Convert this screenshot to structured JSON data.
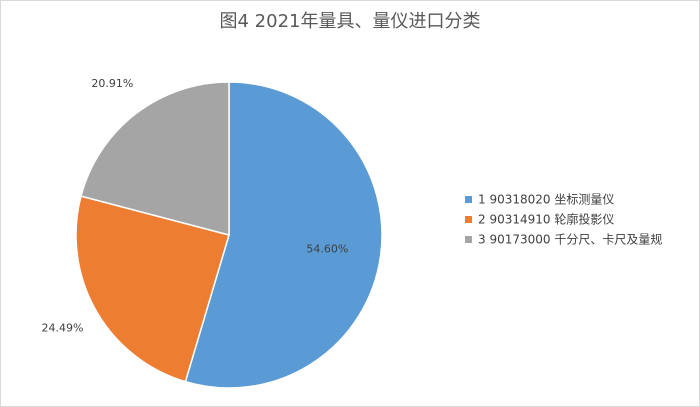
{
  "chart_data": {
    "type": "pie",
    "title": "图4 2021年量具、量仪进口分类",
    "series": [
      {
        "name": "1 90318020 坐标测量仪",
        "color": "#5b9bd5",
        "values": [
          54.6
        ],
        "value_labels": [
          "54.60%"
        ]
      },
      {
        "name": "2 90314910 轮廓投影仪",
        "color": "#ed7d31",
        "values": [
          24.49
        ],
        "value_labels": [
          "24.49%"
        ]
      },
      {
        "name": "3 90173000 千分尺、卡尺及量规",
        "color": "#a5a5a5",
        "values": [
          20.91
        ],
        "value_labels": [
          "20.91%"
        ]
      }
    ]
  }
}
